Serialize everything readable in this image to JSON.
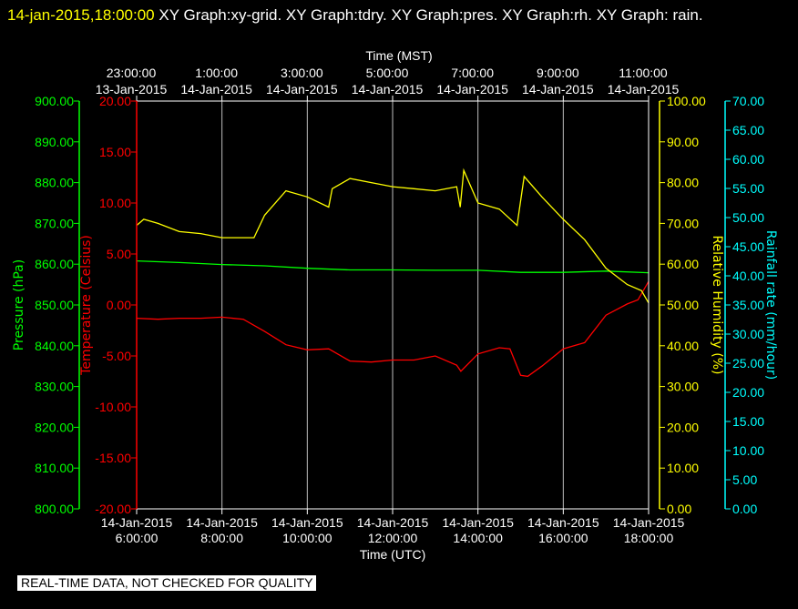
{
  "header": {
    "timestamp": "14-jan-2015,18:00:00",
    "graphs": "XY Graph:xy-grid.  XY Graph:tdry.  XY Graph:pres.  XY Graph:rh.  XY Graph: rain."
  },
  "notice": "REAL-TIME DATA, NOT CHECKED FOR QUALITY",
  "colors": {
    "background": "#000000",
    "grid": "#ffffff",
    "pressure": "#00ff00",
    "temperature": "#ff0000",
    "humidity": "#ffff00",
    "rain": "#00ffff"
  },
  "chart_data": {
    "type": "line",
    "grid": true,
    "x_bottom": {
      "label": "Time (UTC)",
      "range": [
        "2015-01-14T06:00",
        "2015-01-14T18:00"
      ],
      "ticks": [
        {
          "date": "14-Jan-2015",
          "time": "6:00:00"
        },
        {
          "date": "14-Jan-2015",
          "time": "8:00:00"
        },
        {
          "date": "14-Jan-2015",
          "time": "10:00:00"
        },
        {
          "date": "14-Jan-2015",
          "time": "12:00:00"
        },
        {
          "date": "14-Jan-2015",
          "time": "14:00:00"
        },
        {
          "date": "14-Jan-2015",
          "time": "16:00:00"
        },
        {
          "date": "14-Jan-2015",
          "time": "18:00:00"
        }
      ]
    },
    "x_top": {
      "label": "Time (MST)",
      "ticks": [
        {
          "time": "23:00:00",
          "date": "13-Jan-2015"
        },
        {
          "time": "1:00:00",
          "date": "14-Jan-2015"
        },
        {
          "time": "3:00:00",
          "date": "14-Jan-2015"
        },
        {
          "time": "5:00:00",
          "date": "14-Jan-2015"
        },
        {
          "time": "7:00:00",
          "date": "14-Jan-2015"
        },
        {
          "time": "9:00:00",
          "date": "14-Jan-2015"
        },
        {
          "time": "11:00:00",
          "date": "14-Jan-2015"
        }
      ]
    },
    "axes": {
      "pressure": {
        "label": "Pressure (hPa)",
        "range": [
          800,
          900
        ],
        "ticks": [
          "800.00",
          "810.00",
          "820.00",
          "830.00",
          "840.00",
          "850.00",
          "860.00",
          "870.00",
          "880.00",
          "890.00",
          "900.00"
        ]
      },
      "temperature": {
        "label": "Temperature (Celsius)",
        "range": [
          -20,
          20
        ],
        "ticks": [
          "-20.00",
          "-15.00",
          "-10.00",
          "-5.00",
          "0.00",
          "5.00",
          "10.00",
          "15.00",
          "20.00"
        ]
      },
      "humidity": {
        "label": "Relative Humidity (%)",
        "range": [
          0,
          100
        ],
        "ticks": [
          "0.00",
          "10.00",
          "20.00",
          "30.00",
          "40.00",
          "50.00",
          "60.00",
          "70.00",
          "80.00",
          "90.00",
          "100.00"
        ]
      },
      "rain": {
        "label": "Rainfall rate (mm/hour)",
        "range": [
          0,
          70
        ],
        "ticks": [
          "0.00",
          "5.00",
          "10.00",
          "15.00",
          "20.00",
          "25.00",
          "30.00",
          "35.00",
          "40.00",
          "45.00",
          "50.00",
          "55.00",
          "60.00",
          "65.00",
          "70.00"
        ]
      }
    },
    "series": [
      {
        "key": "pressure",
        "axis": "pressure",
        "points": [
          [
            "2015-01-14T06:00",
            860.8
          ],
          [
            "2015-01-14T07:00",
            860.4
          ],
          [
            "2015-01-14T08:00",
            859.9
          ],
          [
            "2015-01-14T09:00",
            859.6
          ],
          [
            "2015-01-14T10:00",
            859.0
          ],
          [
            "2015-01-14T11:00",
            858.6
          ],
          [
            "2015-01-14T12:00",
            858.6
          ],
          [
            "2015-01-14T13:00",
            858.5
          ],
          [
            "2015-01-14T14:00",
            858.5
          ],
          [
            "2015-01-14T15:00",
            858.0
          ],
          [
            "2015-01-14T16:00",
            858.0
          ],
          [
            "2015-01-14T17:00",
            858.3
          ],
          [
            "2015-01-14T18:00",
            857.9
          ]
        ]
      },
      {
        "key": "temperature",
        "axis": "temperature",
        "points": [
          [
            "2015-01-14T06:00",
            -1.3
          ],
          [
            "2015-01-14T06:30",
            -1.4
          ],
          [
            "2015-01-14T07:00",
            -1.3
          ],
          [
            "2015-01-14T07:30",
            -1.3
          ],
          [
            "2015-01-14T08:00",
            -1.2
          ],
          [
            "2015-01-14T08:30",
            -1.4
          ],
          [
            "2015-01-14T09:00",
            -2.6
          ],
          [
            "2015-01-14T09:30",
            -3.9
          ],
          [
            "2015-01-14T10:00",
            -4.4
          ],
          [
            "2015-01-14T10:30",
            -4.3
          ],
          [
            "2015-01-14T11:00",
            -5.5
          ],
          [
            "2015-01-14T11:30",
            -5.6
          ],
          [
            "2015-01-14T12:00",
            -5.4
          ],
          [
            "2015-01-14T12:30",
            -5.4
          ],
          [
            "2015-01-14T13:00",
            -5.0
          ],
          [
            "2015-01-14T13:30",
            -5.9
          ],
          [
            "2015-01-14T13:36",
            -6.5
          ],
          [
            "2015-01-14T14:00",
            -4.8
          ],
          [
            "2015-01-14T14:30",
            -4.2
          ],
          [
            "2015-01-14T14:45",
            -4.3
          ],
          [
            "2015-01-14T15:00",
            -6.9
          ],
          [
            "2015-01-14T15:10",
            -7.0
          ],
          [
            "2015-01-14T15:30",
            -6.0
          ],
          [
            "2015-01-14T16:00",
            -4.3
          ],
          [
            "2015-01-14T16:30",
            -3.7
          ],
          [
            "2015-01-14T17:00",
            -1.0
          ],
          [
            "2015-01-14T17:30",
            0.1
          ],
          [
            "2015-01-14T17:45",
            0.5
          ],
          [
            "2015-01-14T18:00",
            2.3
          ]
        ]
      },
      {
        "key": "humidity",
        "axis": "humidity",
        "points": [
          [
            "2015-01-14T06:00",
            69.5
          ],
          [
            "2015-01-14T06:10",
            71
          ],
          [
            "2015-01-14T06:30",
            70
          ],
          [
            "2015-01-14T07:00",
            68
          ],
          [
            "2015-01-14T07:30",
            67.5
          ],
          [
            "2015-01-14T08:00",
            66.5
          ],
          [
            "2015-01-14T08:45",
            66.5
          ],
          [
            "2015-01-14T09:00",
            72
          ],
          [
            "2015-01-14T09:30",
            78
          ],
          [
            "2015-01-14T10:00",
            76.5
          ],
          [
            "2015-01-14T10:30",
            74
          ],
          [
            "2015-01-14T10:35",
            78.5
          ],
          [
            "2015-01-14T11:00",
            81
          ],
          [
            "2015-01-14T11:30",
            80
          ],
          [
            "2015-01-14T12:00",
            79
          ],
          [
            "2015-01-14T12:30",
            78.5
          ],
          [
            "2015-01-14T13:00",
            78
          ],
          [
            "2015-01-14T13:30",
            79
          ],
          [
            "2015-01-14T13:35",
            74
          ],
          [
            "2015-01-14T13:40",
            83
          ],
          [
            "2015-01-14T14:00",
            75
          ],
          [
            "2015-01-14T14:30",
            73.5
          ],
          [
            "2015-01-14T14:55",
            69.5
          ],
          [
            "2015-01-14T15:05",
            81.5
          ],
          [
            "2015-01-14T15:30",
            76.5
          ],
          [
            "2015-01-14T16:00",
            71
          ],
          [
            "2015-01-14T16:30",
            66
          ],
          [
            "2015-01-14T17:00",
            59
          ],
          [
            "2015-01-14T17:30",
            55
          ],
          [
            "2015-01-14T17:50",
            53.5
          ],
          [
            "2015-01-14T18:00",
            50.5
          ]
        ]
      },
      {
        "key": "rain",
        "axis": "rain",
        "points": []
      }
    ]
  }
}
